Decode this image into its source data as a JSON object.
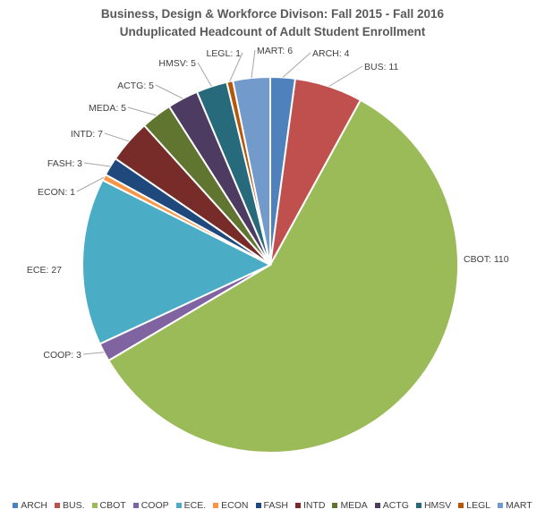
{
  "chart_data": {
    "type": "pie",
    "title": "Business, Design & Workforce Divison: Fall 2015 - Fall 2016",
    "subtitle": "Unduplicated Headcount of Adult Student Enrollment",
    "slices": [
      {
        "label": "ARCH",
        "data_label": "ARCH: 4",
        "legend": "ARCH",
        "value": 4,
        "color": "#4F81BD"
      },
      {
        "label": "BUS",
        "data_label": "BUS: 11",
        "legend": "BUS.",
        "value": 11,
        "color": "#C0504D"
      },
      {
        "label": "CBOT",
        "data_label": "CBOT: 110",
        "legend": "CBOT",
        "value": 110,
        "color": "#9BBB59"
      },
      {
        "label": "COOP",
        "data_label": "COOP: 3",
        "legend": "COOP",
        "value": 3,
        "color": "#8064A2"
      },
      {
        "label": "ECE",
        "data_label": "ECE: 27",
        "legend": "ECE.",
        "value": 27,
        "color": "#4BACC6"
      },
      {
        "label": "ECON",
        "data_label": "ECON: 1",
        "legend": "ECON",
        "value": 1,
        "color": "#F79646"
      },
      {
        "label": "FASH",
        "data_label": "FASH: 3",
        "legend": "FASH",
        "value": 3,
        "color": "#1F497D"
      },
      {
        "label": "INTD",
        "data_label": "INTD: 7",
        "legend": "INTD",
        "value": 7,
        "color": "#772C2A"
      },
      {
        "label": "MEDA",
        "data_label": "MEDA: 5",
        "legend": "MEDA",
        "value": 5,
        "color": "#5F7530"
      },
      {
        "label": "ACTG",
        "data_label": "ACTG: 5",
        "legend": "ACTG",
        "value": 5,
        "color": "#4D3B62"
      },
      {
        "label": "HMSV",
        "data_label": "HMSV: 5",
        "legend": "HMSV",
        "value": 5,
        "color": "#276A7C"
      },
      {
        "label": "LEGL",
        "data_label": "LEGL: 1",
        "legend": "LEGL",
        "value": 1,
        "color": "#B65708"
      },
      {
        "label": "MART",
        "data_label": "MART: 6",
        "legend": "MART",
        "value": 6,
        "color": "#729ACA"
      }
    ],
    "legend_position": "bottom"
  }
}
